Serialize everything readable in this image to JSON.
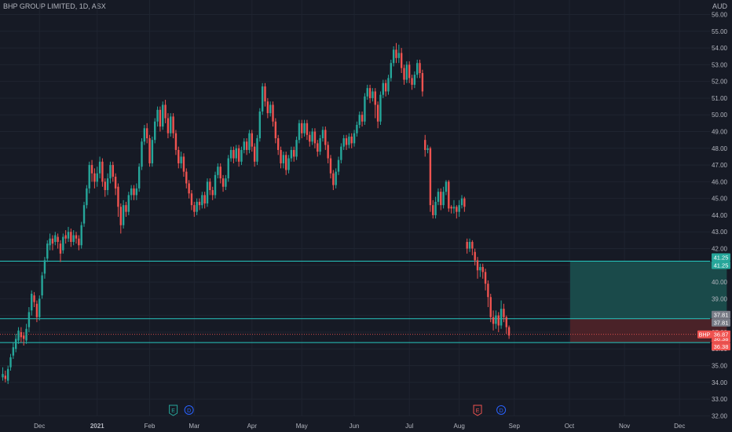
{
  "header": {
    "title": "BHP GROUP LIMITED, 1D, ASX",
    "currency": "AUD"
  },
  "colors": {
    "background": "#161a25",
    "grid": "#1f2430",
    "up": "#26a69a",
    "down": "#ef5350",
    "level_line": "#26c6bf",
    "target_zone": "#1a4a4a",
    "stop_zone": "#4a2228",
    "axis_text": "#b2b5be"
  },
  "chart_data": {
    "type": "candlestick",
    "y_axis": {
      "min": 31.5,
      "max": 56.4,
      "ticks": [
        32,
        33,
        34,
        35,
        36,
        37,
        38,
        39,
        40,
        41,
        42,
        43,
        44,
        45,
        46,
        47,
        48,
        49,
        50,
        51,
        52,
        53,
        54,
        55,
        56
      ],
      "tick_labels": [
        "32.00",
        "33.00",
        "34.00",
        "35.00",
        "36.00",
        "37.00",
        "38.00",
        "39.00",
        "40.00",
        "41.00",
        "42.00",
        "43.00",
        "44.00",
        "45.00",
        "46.00",
        "47.00",
        "48.00",
        "49.00",
        "50.00",
        "51.00",
        "52.00",
        "53.00",
        "54.00",
        "55.00",
        "56.00"
      ]
    },
    "x_axis": {
      "labels": [
        "Dec",
        "2021",
        "Feb",
        "Mar",
        "Apr",
        "May",
        "Jun",
        "Jul",
        "Aug",
        "Sep",
        "Oct",
        "Nov",
        "Dec"
      ],
      "label_index": [
        14,
        36,
        56,
        73,
        95,
        114,
        134,
        155,
        174,
        195,
        216,
        237,
        258
      ]
    },
    "candles": [
      [
        34.3,
        34.5,
        34.1,
        34.9
      ],
      [
        34.4,
        34.2,
        34.0,
        34.7
      ],
      [
        34.1,
        34.8,
        33.9,
        35.0
      ],
      [
        34.9,
        35.5,
        34.7,
        35.7
      ],
      [
        35.6,
        36.1,
        35.4,
        36.4
      ],
      [
        36.0,
        36.6,
        35.8,
        36.9
      ],
      [
        36.5,
        37.1,
        36.3,
        37.3
      ],
      [
        37.0,
        36.7,
        36.4,
        37.3
      ],
      [
        36.8,
        36.6,
        36.2,
        37.0
      ],
      [
        36.5,
        37.2,
        36.3,
        37.5
      ],
      [
        37.3,
        38.2,
        37.0,
        38.5
      ],
      [
        38.3,
        39.3,
        38.0,
        39.5
      ],
      [
        39.2,
        38.8,
        38.5,
        39.4
      ],
      [
        38.7,
        37.9,
        37.6,
        38.9
      ],
      [
        37.9,
        39.0,
        37.7,
        39.2
      ],
      [
        39.2,
        40.4,
        39.0,
        40.6
      ],
      [
        40.5,
        41.3,
        40.2,
        41.5
      ],
      [
        41.4,
        42.3,
        41.2,
        42.5
      ],
      [
        42.2,
        42.6,
        41.9,
        42.9
      ],
      [
        42.6,
        42.3,
        41.9,
        42.8
      ],
      [
        42.4,
        42.8,
        42.2,
        43.0
      ],
      [
        42.7,
        42.4,
        42.0,
        42.9
      ],
      [
        42.3,
        41.7,
        41.2,
        42.5
      ],
      [
        41.9,
        42.7,
        41.7,
        42.9
      ],
      [
        42.8,
        42.6,
        42.3,
        43.1
      ],
      [
        42.6,
        43.0,
        42.4,
        43.3
      ],
      [
        43.0,
        42.4,
        42.1,
        43.2
      ],
      [
        42.4,
        42.8,
        42.2,
        43.1
      ],
      [
        42.8,
        42.6,
        42.3,
        43.0
      ],
      [
        42.6,
        42.2,
        41.9,
        42.8
      ],
      [
        42.2,
        43.4,
        42.0,
        43.6
      ],
      [
        43.5,
        44.6,
        43.3,
        44.8
      ],
      [
        44.6,
        45.6,
        44.4,
        45.8
      ],
      [
        45.6,
        47.0,
        45.3,
        47.2
      ],
      [
        47.0,
        46.5,
        46.0,
        47.3
      ],
      [
        46.5,
        46.0,
        45.6,
        46.8
      ],
      [
        46.0,
        46.5,
        45.7,
        46.9
      ],
      [
        46.5,
        47.2,
        46.2,
        47.5
      ],
      [
        47.2,
        46.0,
        45.7,
        47.4
      ],
      [
        46.0,
        45.5,
        45.1,
        46.2
      ],
      [
        45.5,
        46.2,
        45.2,
        46.5
      ],
      [
        46.2,
        47.0,
        45.9,
        47.2
      ],
      [
        47.0,
        46.3,
        46.0,
        47.2
      ],
      [
        46.3,
        45.6,
        45.2,
        46.5
      ],
      [
        45.7,
        44.5,
        43.9,
        45.9
      ],
      [
        44.5,
        43.4,
        42.9,
        44.7
      ],
      [
        43.4,
        44.6,
        43.2,
        44.9
      ],
      [
        44.6,
        44.2,
        43.9,
        44.8
      ],
      [
        44.2,
        45.2,
        44.0,
        45.4
      ],
      [
        45.2,
        45.6,
        44.9,
        45.8
      ],
      [
        45.6,
        45.2,
        44.9,
        45.8
      ],
      [
        45.2,
        45.6,
        44.9,
        45.9
      ],
      [
        45.6,
        46.9,
        45.4,
        47.1
      ],
      [
        46.9,
        48.4,
        46.7,
        48.6
      ],
      [
        48.4,
        49.2,
        48.2,
        49.4
      ],
      [
        49.2,
        48.6,
        48.3,
        49.5
      ],
      [
        48.6,
        47.1,
        46.9,
        48.8
      ],
      [
        47.1,
        48.5,
        46.9,
        48.7
      ],
      [
        48.5,
        49.6,
        48.3,
        49.8
      ],
      [
        49.6,
        50.3,
        49.3,
        50.5
      ],
      [
        50.3,
        49.3,
        49.0,
        50.5
      ],
      [
        49.3,
        50.6,
        49.1,
        50.8
      ],
      [
        50.6,
        49.8,
        49.5,
        50.9
      ],
      [
        49.8,
        48.9,
        48.6,
        50.1
      ],
      [
        48.9,
        49.9,
        48.7,
        50.1
      ],
      [
        49.9,
        48.9,
        48.6,
        50.1
      ],
      [
        48.9,
        47.9,
        47.6,
        49.1
      ],
      [
        47.9,
        47.1,
        46.8,
        48.1
      ],
      [
        47.1,
        47.5,
        46.8,
        47.8
      ],
      [
        47.5,
        46.6,
        46.3,
        47.7
      ],
      [
        46.6,
        45.9,
        45.6,
        46.8
      ],
      [
        45.9,
        45.3,
        45.0,
        46.1
      ],
      [
        45.3,
        44.6,
        44.3,
        45.5
      ],
      [
        44.6,
        44.2,
        43.9,
        44.8
      ],
      [
        44.2,
        44.8,
        44.0,
        45.0
      ],
      [
        44.8,
        44.6,
        44.3,
        45.0
      ],
      [
        44.6,
        45.2,
        44.4,
        45.4
      ],
      [
        45.2,
        44.7,
        44.4,
        45.4
      ],
      [
        44.7,
        46.0,
        44.5,
        46.2
      ],
      [
        46.0,
        45.5,
        45.2,
        46.2
      ],
      [
        45.5,
        45.2,
        44.9,
        45.7
      ],
      [
        45.2,
        46.4,
        45.0,
        46.6
      ],
      [
        46.4,
        46.9,
        46.2,
        47.1
      ],
      [
        46.9,
        46.2,
        45.9,
        47.1
      ],
      [
        46.2,
        45.7,
        45.4,
        46.4
      ],
      [
        45.7,
        46.2,
        45.5,
        46.4
      ],
      [
        46.2,
        47.4,
        46.0,
        47.6
      ],
      [
        47.4,
        47.9,
        47.2,
        48.1
      ],
      [
        47.9,
        47.4,
        47.1,
        48.1
      ],
      [
        47.4,
        48.0,
        47.2,
        48.2
      ],
      [
        48.0,
        47.2,
        46.9,
        48.2
      ],
      [
        47.2,
        47.9,
        47.0,
        48.1
      ],
      [
        47.9,
        48.4,
        47.7,
        48.6
      ],
      [
        48.4,
        47.9,
        47.6,
        48.6
      ],
      [
        47.9,
        48.9,
        47.7,
        49.1
      ],
      [
        48.9,
        48.1,
        47.8,
        49.1
      ],
      [
        48.1,
        47.2,
        46.9,
        48.3
      ],
      [
        47.2,
        48.6,
        47.0,
        48.8
      ],
      [
        48.6,
        50.2,
        48.4,
        50.4
      ],
      [
        50.2,
        51.7,
        50.0,
        51.9
      ],
      [
        51.7,
        50.8,
        50.5,
        51.9
      ],
      [
        50.8,
        50.1,
        49.8,
        51.0
      ],
      [
        50.1,
        50.6,
        49.9,
        50.8
      ],
      [
        50.6,
        49.6,
        49.3,
        50.8
      ],
      [
        49.6,
        48.6,
        48.3,
        49.8
      ],
      [
        48.6,
        47.9,
        47.6,
        48.8
      ],
      [
        47.9,
        47.1,
        46.8,
        48.1
      ],
      [
        47.1,
        47.6,
        46.8,
        47.8
      ],
      [
        47.6,
        46.7,
        46.4,
        47.8
      ],
      [
        46.7,
        47.4,
        46.5,
        47.6
      ],
      [
        47.4,
        47.9,
        47.2,
        48.1
      ],
      [
        47.9,
        47.5,
        47.2,
        48.1
      ],
      [
        47.5,
        48.5,
        47.3,
        48.7
      ],
      [
        48.5,
        49.5,
        48.3,
        49.7
      ],
      [
        49.5,
        48.9,
        48.6,
        49.7
      ],
      [
        48.9,
        49.5,
        48.7,
        49.7
      ],
      [
        49.5,
        48.8,
        48.5,
        49.7
      ],
      [
        48.8,
        48.4,
        48.1,
        49.0
      ],
      [
        48.4,
        49.0,
        48.2,
        49.2
      ],
      [
        49.0,
        48.3,
        48.0,
        49.2
      ],
      [
        48.3,
        47.8,
        47.5,
        48.5
      ],
      [
        47.8,
        48.6,
        47.6,
        48.8
      ],
      [
        48.6,
        49.1,
        48.4,
        49.3
      ],
      [
        49.1,
        48.2,
        47.9,
        49.3
      ],
      [
        48.2,
        47.4,
        47.1,
        48.4
      ],
      [
        47.4,
        46.5,
        46.2,
        47.6
      ],
      [
        46.5,
        45.8,
        45.5,
        46.7
      ],
      [
        45.8,
        46.6,
        45.6,
        46.8
      ],
      [
        46.6,
        47.3,
        46.4,
        47.5
      ],
      [
        47.3,
        48.1,
        47.1,
        48.3
      ],
      [
        48.1,
        48.6,
        47.9,
        48.8
      ],
      [
        48.6,
        48.2,
        47.9,
        48.8
      ],
      [
        48.2,
        48.7,
        48.0,
        48.9
      ],
      [
        48.7,
        48.3,
        48.0,
        48.9
      ],
      [
        48.3,
        48.9,
        48.1,
        49.1
      ],
      [
        48.9,
        49.4,
        48.7,
        49.6
      ],
      [
        49.4,
        50.0,
        49.2,
        50.2
      ],
      [
        50.0,
        49.6,
        49.3,
        50.2
      ],
      [
        49.6,
        51.1,
        49.4,
        51.3
      ],
      [
        51.1,
        51.6,
        50.9,
        51.8
      ],
      [
        51.6,
        51.0,
        50.7,
        51.8
      ],
      [
        51.0,
        51.4,
        50.8,
        51.6
      ],
      [
        51.4,
        50.6,
        49.8,
        51.6
      ],
      [
        50.6,
        49.6,
        49.2,
        50.8
      ],
      [
        49.6,
        51.2,
        49.4,
        51.4
      ],
      [
        51.2,
        51.9,
        51.0,
        52.1
      ],
      [
        51.9,
        51.4,
        51.1,
        52.1
      ],
      [
        51.4,
        52.2,
        51.2,
        52.4
      ],
      [
        52.2,
        53.1,
        52.0,
        53.3
      ],
      [
        53.1,
        53.9,
        52.9,
        54.1
      ],
      [
        53.9,
        53.4,
        53.1,
        54.3
      ],
      [
        53.4,
        53.7,
        53.1,
        54.2
      ],
      [
        53.7,
        52.8,
        52.5,
        54.0
      ],
      [
        52.8,
        52.1,
        51.8,
        53.0
      ],
      [
        52.1,
        53.0,
        51.9,
        53.2
      ],
      [
        53.0,
        52.2,
        51.9,
        53.2
      ],
      [
        52.2,
        51.8,
        51.5,
        52.4
      ],
      [
        51.8,
        52.4,
        51.6,
        52.6
      ],
      [
        52.4,
        53.1,
        52.2,
        53.3
      ],
      [
        53.1,
        52.5,
        52.2,
        53.3
      ],
      [
        52.5,
        51.4,
        51.1,
        52.7
      ],
      [
        48.5,
        47.9,
        47.5,
        48.8
      ],
      [
        47.9,
        48.0,
        47.7,
        48.2
      ],
      [
        48.0,
        44.6,
        44.2,
        48.1
      ],
      [
        44.6,
        44.0,
        43.8,
        44.9
      ],
      [
        44.0,
        44.8,
        43.8,
        45.1
      ],
      [
        44.8,
        45.4,
        44.6,
        45.6
      ],
      [
        45.4,
        44.6,
        44.3,
        45.6
      ],
      [
        44.6,
        45.4,
        44.4,
        45.7
      ],
      [
        45.4,
        46.0,
        45.2,
        46.1
      ],
      [
        46.0,
        44.4,
        44.2,
        46.1
      ],
      [
        44.5,
        44.4,
        44.1,
        44.6
      ],
      [
        44.4,
        44.5,
        44.1,
        44.9
      ],
      [
        44.5,
        44.2,
        43.8,
        44.6
      ],
      [
        44.2,
        44.6,
        43.9,
        44.9
      ],
      [
        44.6,
        45.0,
        44.4,
        45.2
      ],
      [
        45.0,
        44.5,
        44.2,
        45.1
      ],
      [
        42.4,
        42.0,
        41.7,
        42.6
      ],
      [
        42.0,
        42.4,
        41.8,
        42.6
      ],
      [
        42.4,
        42.0,
        41.6,
        42.5
      ],
      [
        41.8,
        41.3,
        41.0,
        42.0
      ],
      [
        41.3,
        40.7,
        40.2,
        41.5
      ],
      [
        40.7,
        40.9,
        40.3,
        41.1
      ],
      [
        40.9,
        40.6,
        40.2,
        41.1
      ],
      [
        40.6,
        39.9,
        39.5,
        40.8
      ],
      [
        39.9,
        39.1,
        38.5,
        40.1
      ],
      [
        39.1,
        37.9,
        37.6,
        39.3
      ],
      [
        37.9,
        37.5,
        37.1,
        38.3
      ],
      [
        37.5,
        38.0,
        37.2,
        38.3
      ],
      [
        38.0,
        37.4,
        37.0,
        38.2
      ],
      [
        37.4,
        38.4,
        37.2,
        38.9
      ],
      [
        38.4,
        37.9,
        37.6,
        38.7
      ],
      [
        37.9,
        37.3,
        36.9,
        38.0
      ],
      [
        37.3,
        36.8,
        36.6,
        37.4
      ]
    ],
    "price_levels": [
      {
        "label": "41.25",
        "value": 41.25,
        "role": "take-profit"
      },
      {
        "label": "37.81",
        "value": 37.81,
        "role": "entry"
      },
      {
        "label": "36.38",
        "value": 36.38,
        "role": "stop-loss"
      }
    ],
    "current_price": {
      "symbol": "BHP",
      "value": 36.87,
      "label": "36.87"
    },
    "position_box": {
      "start_index": 216,
      "end_index": 276,
      "entry": 37.81,
      "target": 41.25,
      "stop": 36.38
    },
    "event_markers": [
      {
        "glyph": "E",
        "at_index": 65,
        "color": "#26a69a"
      },
      {
        "glyph": "D",
        "at_index": 71,
        "color": "#2962ff"
      },
      {
        "glyph": "E",
        "at_index": 181,
        "color": "#ef5350"
      },
      {
        "glyph": "D",
        "at_index": 190,
        "color": "#2962ff"
      }
    ]
  }
}
